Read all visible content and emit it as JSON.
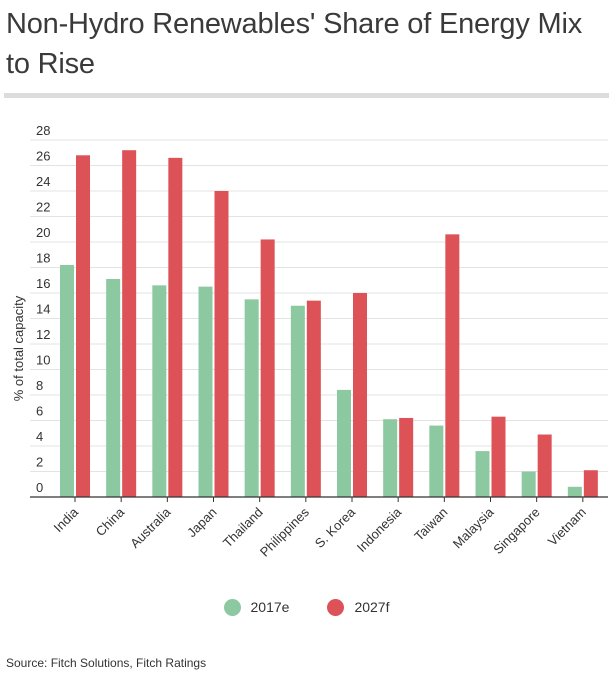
{
  "title": "Non-Hydro Renewables' Share of Energy Mix to Rise",
  "source": "Source: Fitch Solutions, Fitch Ratings",
  "colors": {
    "series_2017": "#8cc8a0",
    "series_2027": "#dc5257",
    "title_rule": "#dcdcdc"
  },
  "chart_data": {
    "type": "bar",
    "ylabel": "% of total capacity",
    "xlabel": "",
    "ylim": [
      0,
      28
    ],
    "yticks": [
      0,
      2,
      4,
      6,
      8,
      10,
      12,
      14,
      16,
      18,
      20,
      22,
      24,
      26,
      28
    ],
    "grid": true,
    "legend_position": "bottom-center",
    "categories": [
      "India",
      "China",
      "Australia",
      "Japan",
      "Thailand",
      "Philippines",
      "S. Korea",
      "Indonesia",
      "Taiwan",
      "Malaysia",
      "Singapore",
      "Vietnam"
    ],
    "series": [
      {
        "name": "2017e",
        "color": "#8cc8a0",
        "values": [
          18.2,
          17.1,
          16.6,
          16.5,
          15.5,
          15.0,
          8.4,
          6.1,
          5.6,
          3.6,
          2.0,
          0.8
        ]
      },
      {
        "name": "2027f",
        "color": "#dc5257",
        "values": [
          26.8,
          27.2,
          26.6,
          24.0,
          20.2,
          15.4,
          16.0,
          6.2,
          20.6,
          6.3,
          4.9,
          2.1
        ]
      }
    ]
  }
}
